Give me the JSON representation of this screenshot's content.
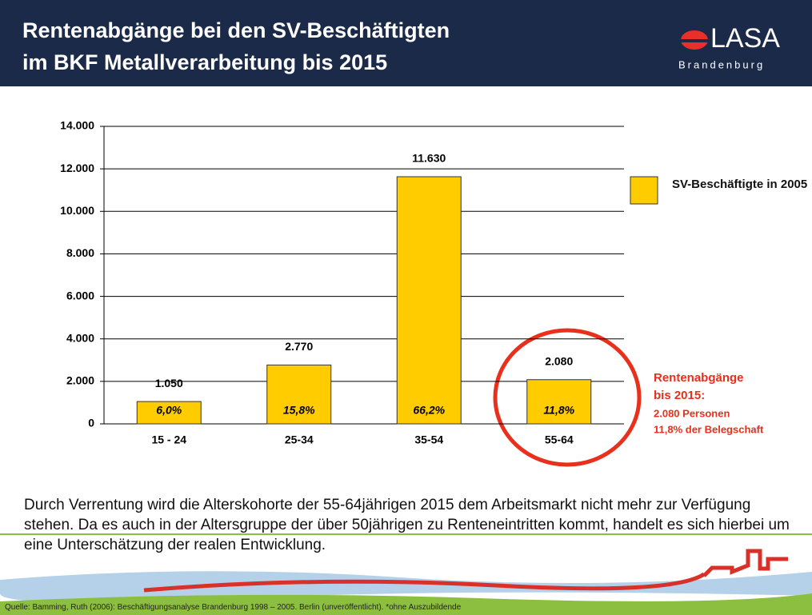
{
  "header": {
    "title": [
      "Rentenabgänge bei den SV-Beschäftigten",
      "im BKF Metallverarbeitung bis 2015"
    ],
    "logo": "LASA",
    "logo_sub": "Brandenburg"
  },
  "chart_data": {
    "type": "bar",
    "categories": [
      "15 - 24",
      "25-34",
      "35-54",
      "55-64"
    ],
    "series": [
      {
        "name": "SV-Beschäftigte in 2005",
        "color": "#ffcc00",
        "values": [
          1050,
          2770,
          11630,
          2080
        ],
        "value_labels": [
          "1.050",
          "2.770",
          "11.630",
          "2.080"
        ],
        "share_labels": [
          "6,0%",
          "15,8%",
          "66,2%",
          "11,8%"
        ]
      }
    ],
    "ylim": [
      0,
      14000
    ],
    "yticks": [
      0,
      {
        "value": 2000,
        "label": "2.000"
      },
      {
        "value": 4000,
        "label": "4.000"
      },
      {
        "value": 6000,
        "label": "6.000"
      },
      {
        "value": 8000,
        "label": "8.000"
      },
      {
        "value": 10000,
        "label": "10.000"
      },
      {
        "value": 12000,
        "label": "12.000"
      },
      {
        "value": 14000,
        "label": "14.000"
      }
    ],
    "grid": true,
    "legend": "right",
    "annotation": [
      "Rentenabgänge",
      "bis 2015:",
      "2.080 Personen",
      "11,8% der Belegschaft"
    ]
  },
  "body": "Durch Verrentung wird die Alterskohorte der 55-64jährigen 2015 dem Arbeitsmarkt nicht mehr zur Verfügung stehen. Da es auch in der Altersgruppe der über 50jährigen zu Renteneintritten kommt, handelt es sich hierbei um eine Unterschätzung der realen Entwicklung.",
  "source": "Quelle: Bamming, Ruth (2006): Beschäftigungsanalyse Brandenburg 1998 – 2005. Berlin (unveröffentlicht). *ohne Auszubildende"
}
